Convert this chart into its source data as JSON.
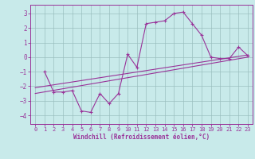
{
  "xlabel": "Windchill (Refroidissement éolien,°C)",
  "bg_color": "#c8eaea",
  "line_color": "#993399",
  "grid_color": "#9bbfbf",
  "xlim": [
    -0.5,
    23.5
  ],
  "ylim": [
    -4.6,
    3.6
  ],
  "yticks": [
    -4,
    -3,
    -2,
    -1,
    0,
    1,
    2,
    3
  ],
  "xticks": [
    0,
    1,
    2,
    3,
    4,
    5,
    6,
    7,
    8,
    9,
    10,
    11,
    12,
    13,
    14,
    15,
    16,
    17,
    18,
    19,
    20,
    21,
    22,
    23
  ],
  "series1_x": [
    1,
    2,
    3,
    4,
    5,
    6,
    7,
    8,
    9,
    10,
    11,
    12,
    13,
    14,
    15,
    16,
    17,
    18,
    19,
    20,
    21,
    22,
    23
  ],
  "series1_y": [
    -1.0,
    -2.4,
    -2.4,
    -2.3,
    -3.7,
    -3.8,
    -2.5,
    -3.2,
    -2.5,
    0.2,
    -0.7,
    2.3,
    2.4,
    2.5,
    3.0,
    3.1,
    2.3,
    1.5,
    0.0,
    -0.1,
    -0.1,
    0.7,
    0.1
  ],
  "series2_x": [
    0,
    23
  ],
  "series2_y": [
    -2.5,
    0.0
  ],
  "series3_x": [
    0,
    23
  ],
  "series3_y": [
    -2.1,
    0.15
  ],
  "xlabel_fontsize": 5.5,
  "tick_fontsize": 5.0,
  "marker_size": 3,
  "linewidth": 0.8
}
